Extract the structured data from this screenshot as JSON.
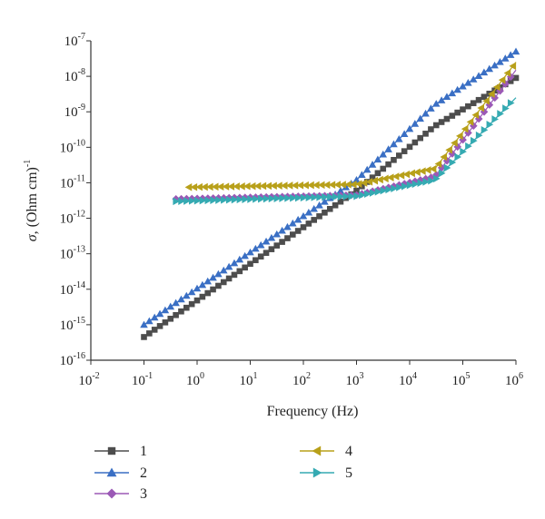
{
  "chart_data": {
    "type": "scatter",
    "title": "",
    "xlabel": "Frequency (Hz)",
    "ylabel": "σ, (Ohm cm)",
    "ylabel_exponent": "-1",
    "x_scale": "log",
    "y_scale": "log",
    "xlim": [
      0.01,
      1000000
    ],
    "ylim": [
      1e-16,
      1e-07
    ],
    "x_ticks": [
      {
        "base": "10",
        "exp": "-2"
      },
      {
        "base": "10",
        "exp": "-1"
      },
      {
        "base": "10",
        "exp": "0"
      },
      {
        "base": "10",
        "exp": "1"
      },
      {
        "base": "10",
        "exp": "2"
      },
      {
        "base": "10",
        "exp": "3"
      },
      {
        "base": "10",
        "exp": "4"
      },
      {
        "base": "10",
        "exp": "5"
      },
      {
        "base": "10",
        "exp": "6"
      }
    ],
    "y_ticks": [
      {
        "base": "10",
        "exp": "-16"
      },
      {
        "base": "10",
        "exp": "-15"
      },
      {
        "base": "10",
        "exp": "-14"
      },
      {
        "base": "10",
        "exp": "-13"
      },
      {
        "base": "10",
        "exp": "-12"
      },
      {
        "base": "10",
        "exp": "-11"
      },
      {
        "base": "10",
        "exp": "-10"
      },
      {
        "base": "10",
        "exp": "-9"
      },
      {
        "base": "10",
        "exp": "-8"
      },
      {
        "base": "10",
        "exp": "-7"
      }
    ],
    "grid": false,
    "legend_position": "bottom",
    "series": [
      {
        "name": "1",
        "color": "#4d4d4d",
        "marker": "square",
        "points": [
          [
            0.1,
            4.5e-16
          ],
          [
            1000,
            6e-12
          ],
          [
            30000,
            4e-10
          ],
          [
            1000000,
            9e-09
          ]
        ]
      },
      {
        "name": "2",
        "color": "#3a6fc4",
        "marker": "triangle-up",
        "points": [
          [
            0.1,
            1e-15
          ],
          [
            1000,
            1.2e-11
          ],
          [
            30000,
            1.6e-09
          ],
          [
            1000000,
            5e-08
          ]
        ]
      },
      {
        "name": "3",
        "color": "#9b59b6",
        "marker": "diamond",
        "points": [
          [
            0.4,
            3.5e-12
          ],
          [
            1000,
            4.5e-12
          ],
          [
            30000,
            1.5e-11
          ],
          [
            1000000,
            1.5e-08
          ]
        ]
      },
      {
        "name": "4",
        "color": "#b8a01a",
        "marker": "triangle-left",
        "points": [
          [
            0.7,
            7.5e-12
          ],
          [
            1000,
            9e-12
          ],
          [
            30000,
            2.5e-11
          ],
          [
            1000000,
            2.5e-08
          ]
        ]
      },
      {
        "name": "5",
        "color": "#35aab2",
        "marker": "triangle-right",
        "points": [
          [
            0.4,
            3e-12
          ],
          [
            1000,
            4.2e-12
          ],
          [
            30000,
            1.2e-11
          ],
          [
            1000000,
            2.5e-09
          ]
        ]
      }
    ]
  }
}
